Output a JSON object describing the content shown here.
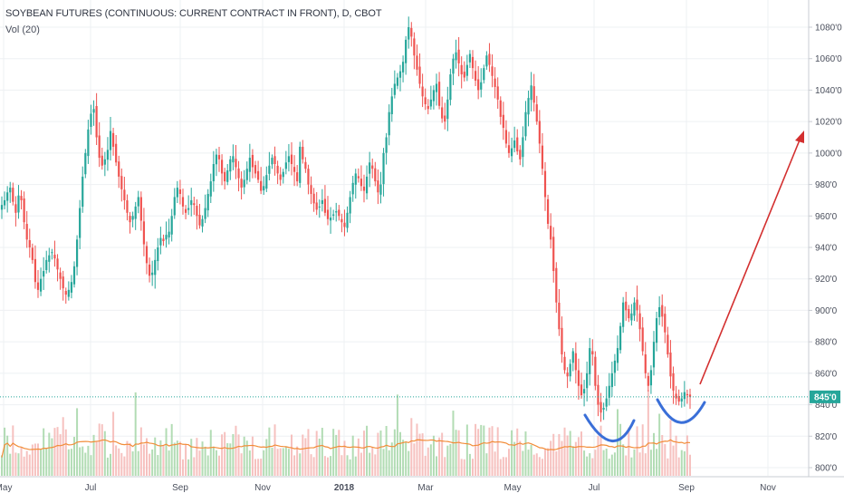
{
  "header": {
    "title": "SOYBEAN FUTURES (CONTINUOUS: CURRENT CONTRACT IN FRONT), D, CBOT",
    "subtitle": "Vol (20)"
  },
  "colors": {
    "up": "#26a69a",
    "down": "#ef5350",
    "volume_up": "#a5d6a7",
    "volume_down": "#f4b6b4",
    "volume_ma": "#f28c38",
    "price_line": "#26a69a",
    "price_label_bg": "#26a69a",
    "grid": "#eef0f3",
    "axis_text": "#4a4f5c",
    "arrow": "#d32f2f",
    "cup": "#3a6fd8"
  },
  "chart_data": {
    "type": "candlestick",
    "xaxis_labels": [
      "May",
      "Jul",
      "Sep",
      "Nov",
      "2018",
      "Mar",
      "May",
      "Jul",
      "Sep",
      "Nov"
    ],
    "yaxis_labels": [
      "1080'0",
      "1060'0",
      "1040'0",
      "1020'0",
      "1000'0",
      "980'0",
      "960'0",
      "940'0",
      "920'0",
      "900'0",
      "880'0",
      "860'0",
      "840'0",
      "820'0",
      "800'0"
    ],
    "ylim": [
      795,
      1092
    ],
    "last_price_label": "845'0",
    "last_price": 845,
    "series": [
      {
        "name": "",
        "kind": "daily close (approx.)",
        "close": [
          967,
          970,
          975,
          978,
          969,
          962,
          973,
          970,
          956,
          945,
          940,
          932,
          918,
          913,
          920,
          925,
          932,
          935,
          937,
          933,
          926,
          920,
          914,
          910,
          913,
          918,
          928,
          945,
          965,
          985,
          1000,
          1015,
          1025,
          1028,
          1010,
          997,
          992,
          996,
          1002,
          1014,
          1004,
          994,
          985,
          977,
          970,
          962,
          956,
          960,
          966,
          972,
          957,
          942,
          930,
          922,
          924,
          932,
          940,
          946,
          944,
          948,
          950,
          960,
          972,
          978,
          974,
          966,
          962,
          965,
          970,
          967,
          960,
          954,
          958,
          965,
          974,
          982,
          993,
          999,
          996,
          987,
          982,
          989,
          996,
          998,
          991,
          984,
          978,
          983,
          990,
          997,
          991,
          987,
          983,
          976,
          979,
          986,
          992,
          997,
          993,
          987,
          983,
          988,
          994,
          998,
          993,
          988,
          982,
          1004,
          996,
          990,
          980,
          974,
          968,
          964,
          966,
          970,
          962,
          958,
          959,
          961,
          963,
          960,
          956,
          953,
          962,
          972,
          981,
          987,
          984,
          979,
          976,
          985,
          994,
          990,
          982,
          975,
          980,
          1000,
          1010,
          1026,
          1036,
          1044,
          1048,
          1052,
          1058,
          1072,
          1080,
          1074,
          1062,
          1053,
          1044,
          1036,
          1031,
          1028,
          1034,
          1040,
          1044,
          1030,
          1022,
          1020,
          1034,
          1050,
          1060,
          1064,
          1057,
          1050,
          1048,
          1056,
          1063,
          1054,
          1046,
          1040,
          1045,
          1054,
          1062,
          1056,
          1049,
          1042,
          1034,
          1023,
          1016,
          1006,
          1000,
          1003,
          1008,
          1001,
          996,
          1010,
          1026,
          1035,
          1043,
          1032,
          1020,
          1006,
          990,
          972,
          955,
          945,
          925,
          905,
          888,
          872,
          862,
          858,
          866,
          874,
          862,
          852,
          846,
          850,
          860,
          876,
          872,
          852,
          840,
          835,
          838,
          844,
          852,
          860,
          868,
          876,
          890,
          905,
          900,
          895,
          898,
          905,
          900,
          888,
          874,
          860,
          852,
          862,
          880,
          895,
          902,
          896,
          886,
          872,
          858,
          849,
          844,
          842,
          844,
          848,
          846,
          845
        ]
      }
    ]
  },
  "annotations": {
    "cup_left": "blue U-shaped curve (first trough)",
    "cup_right": "blue U-shaped curve (second trough)",
    "projection_arrow": "red upward arrow"
  }
}
